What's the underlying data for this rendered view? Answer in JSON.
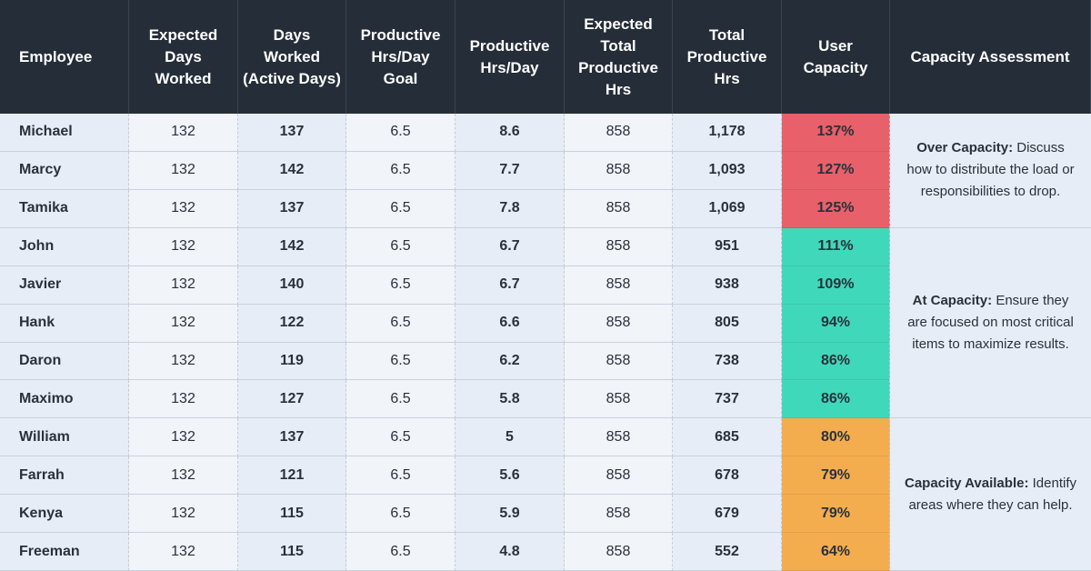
{
  "table": {
    "headers": [
      "Employee",
      "Expected\nDays\nWorked",
      "Days\nWorked\n(Active Days)",
      "Productive\nHrs/Day\nGoal",
      "Productive\nHrs/Day",
      "Expected\nTotal\nProductive\nHrs",
      "Total\nProductive\nHrs",
      "User\nCapacity",
      "Capacity Assessment"
    ],
    "rows": [
      [
        "Michael",
        "132",
        "137",
        "6.5",
        "8.6",
        "858",
        "1,178",
        "137%"
      ],
      [
        "Marcy",
        "132",
        "142",
        "6.5",
        "7.7",
        "858",
        "1,093",
        "127%"
      ],
      [
        "Tamika",
        "132",
        "137",
        "6.5",
        "7.8",
        "858",
        "1,069",
        "125%"
      ],
      [
        "John",
        "132",
        "142",
        "6.5",
        "6.7",
        "858",
        "951",
        "111%"
      ],
      [
        "Javier",
        "132",
        "140",
        "6.5",
        "6.7",
        "858",
        "938",
        "109%"
      ],
      [
        "Hank",
        "132",
        "122",
        "6.5",
        "6.6",
        "858",
        "805",
        "94%"
      ],
      [
        "Daron",
        "132",
        "119",
        "6.5",
        "6.2",
        "858",
        "738",
        "86%"
      ],
      [
        "Maximo",
        "132",
        "127",
        "6.5",
        "5.8",
        "858",
        "737",
        "86%"
      ],
      [
        "William",
        "132",
        "137",
        "6.5",
        "5",
        "858",
        "685",
        "80%"
      ],
      [
        "Farrah",
        "132",
        "121",
        "6.5",
        "5.6",
        "858",
        "678",
        "79%"
      ],
      [
        "Kenya",
        "132",
        "115",
        "6.5",
        "5.9",
        "858",
        "679",
        "79%"
      ],
      [
        "Freeman",
        "132",
        "115",
        "6.5",
        "4.8",
        "858",
        "552",
        "64%"
      ]
    ],
    "assessments": [
      {
        "label": "Over Capacity:",
        "text": "Discuss how to distribute the load or responsibilities to drop."
      },
      {
        "label": "At Capacity:",
        "text": "Ensure they are focused on most critical items to maximize results."
      },
      {
        "label": "Capacity Available:",
        "text": "Identify areas where they can help."
      }
    ]
  }
}
